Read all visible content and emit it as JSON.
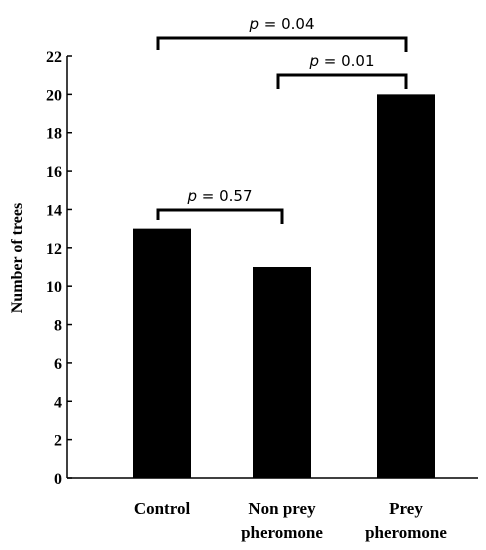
{
  "chart_data": {
    "type": "bar",
    "categories": [
      [
        "Control"
      ],
      [
        "Non prey",
        "pheromone"
      ],
      [
        "Prey",
        "pheromone"
      ]
    ],
    "values": [
      13,
      11,
      20
    ],
    "ylabel": "Number of trees",
    "ylim": [
      0,
      22
    ],
    "yticks": [
      0,
      2,
      4,
      6,
      8,
      10,
      12,
      14,
      16,
      18,
      20,
      22
    ],
    "bar_color": "#000000",
    "grid": false,
    "annotations": [
      {
        "from": 0,
        "to": 1,
        "label": "p = 0.57"
      },
      {
        "from": 1,
        "to": 2,
        "label": "p = 0.01"
      },
      {
        "from": 0,
        "to": 2,
        "label": "p = 0.04"
      }
    ]
  }
}
